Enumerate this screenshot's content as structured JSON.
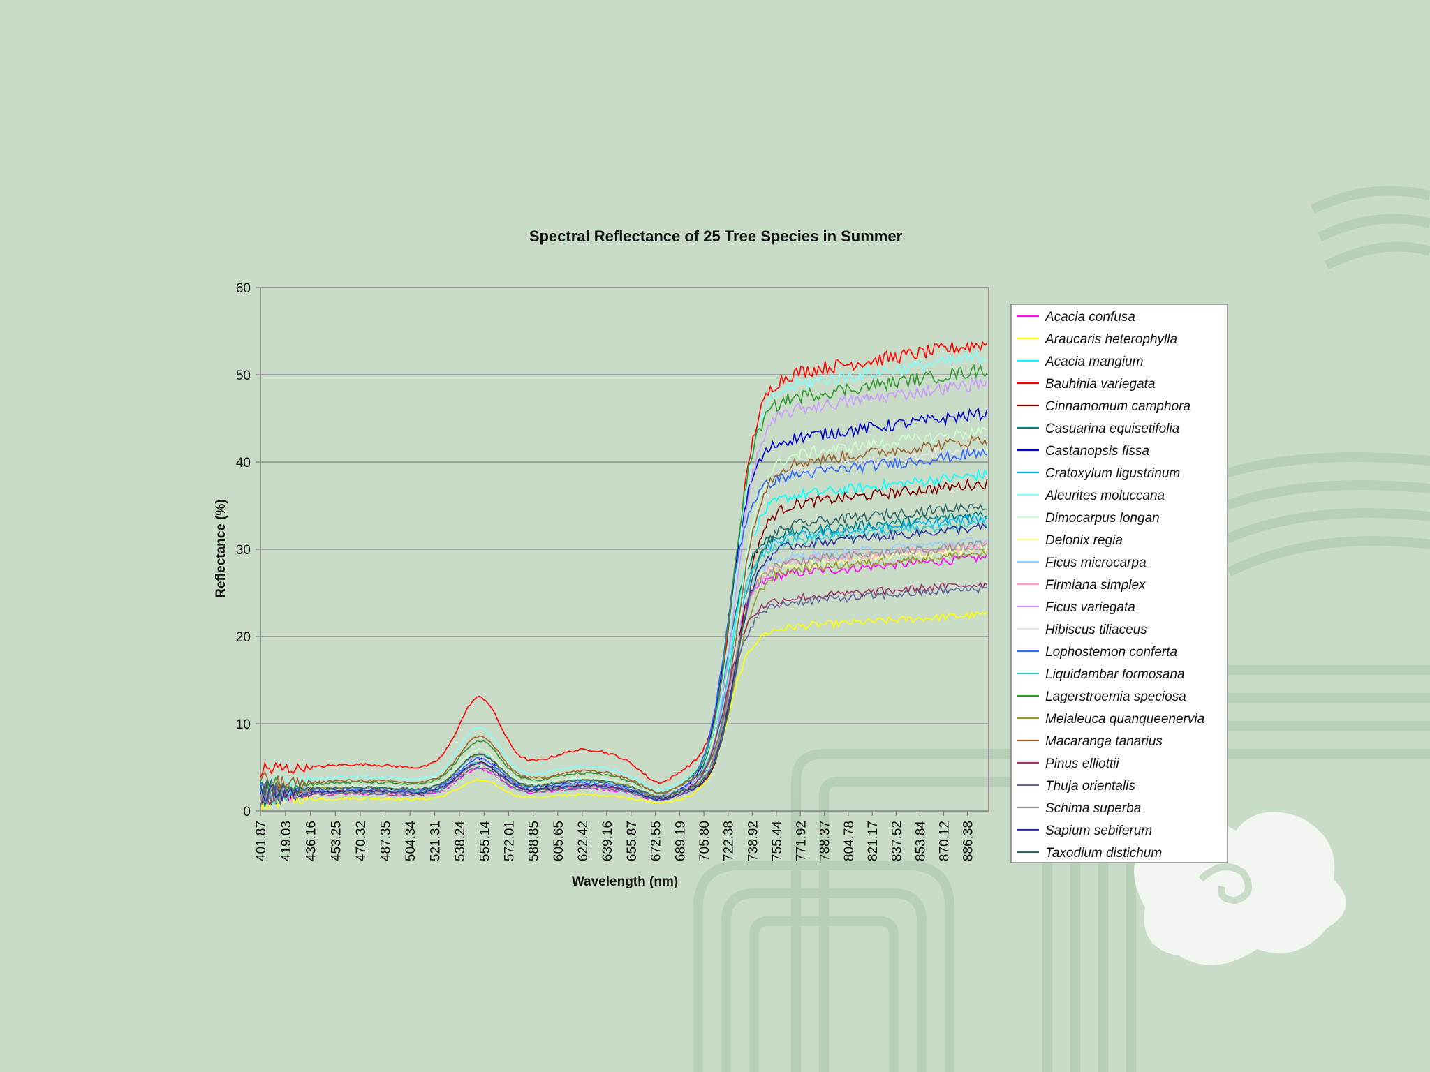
{
  "chart_data": {
    "type": "line",
    "title": "Spectral Reflectance of 25 Tree Species in Summer",
    "xlabel": "Wavelength (nm)",
    "ylabel": "Reflectance (%)",
    "ylim": [
      0,
      60
    ],
    "yticks": [
      0,
      10,
      20,
      30,
      40,
      50,
      60
    ],
    "xlim": [
      401.87,
      901.0
    ],
    "xticks": [
      "401.87",
      "419.03",
      "436.16",
      "453.25",
      "470.32",
      "487.35",
      "504.34",
      "521.31",
      "538.24",
      "555.14",
      "572.01",
      "588.85",
      "605.65",
      "622.42",
      "639.16",
      "655.87",
      "672.55",
      "689.19",
      "705.80",
      "722.38",
      "738.92",
      "755.44",
      "771.92",
      "788.37",
      "804.78",
      "821.17",
      "837.52",
      "853.84",
      "870.12",
      "886.38"
    ],
    "grid": "horizontal",
    "legend": "right",
    "series": [
      {
        "name": "Acacia confusa",
        "color": "#ff00ff",
        "visible_peak": 4.8,
        "nir": 29.0
      },
      {
        "name": "Araucaris heterophylla",
        "color": "#ffff00",
        "visible_peak": 3.5,
        "nir": 22.5
      },
      {
        "name": "Acacia mangium",
        "color": "#00ffff",
        "visible_peak": 6.5,
        "nir": 38.5
      },
      {
        "name": "Bauhinia variegata",
        "color": "#ff0000",
        "visible_peak": 13.0,
        "nir": 53.5
      },
      {
        "name": "Cinnamomum camphora",
        "color": "#800000",
        "visible_peak": 5.5,
        "nir": 37.5
      },
      {
        "name": "Casuarina equisetifolia",
        "color": "#008080",
        "visible_peak": 5.0,
        "nir": 34.0
      },
      {
        "name": "Castanopsis fissa",
        "color": "#0000cc",
        "visible_peak": 6.0,
        "nir": 45.5
      },
      {
        "name": "Cratoxylum ligustrinum",
        "color": "#00b0f0",
        "visible_peak": 5.5,
        "nir": 33.5
      },
      {
        "name": "Aleurites moluccana",
        "color": "#80ffff",
        "visible_peak": 9.5,
        "nir": 52.0
      },
      {
        "name": "Dimocarpus longan",
        "color": "#ccffcc",
        "visible_peak": 7.0,
        "nir": 43.5
      },
      {
        "name": "Delonix regia",
        "color": "#ffff99",
        "visible_peak": 5.0,
        "nir": 30.0
      },
      {
        "name": "Ficus microcarpa",
        "color": "#99ccff",
        "visible_peak": 6.0,
        "nir": 31.0
      },
      {
        "name": "Firmiana simplex",
        "color": "#ff99cc",
        "visible_peak": 5.0,
        "nir": 30.5
      },
      {
        "name": "Ficus variegata",
        "color": "#cc99ff",
        "visible_peak": 6.5,
        "nir": 49.0
      },
      {
        "name": "Hibiscus tiliaceus",
        "color": "#e6e6e6",
        "visible_peak": 6.0,
        "nir": 41.5
      },
      {
        "name": "Lophostemon conferta",
        "color": "#3366ff",
        "visible_peak": 6.0,
        "nir": 41.0
      },
      {
        "name": "Liquidambar formosana",
        "color": "#33cccc",
        "visible_peak": 5.5,
        "nir": 33.0
      },
      {
        "name": "Lagerstroemia speciosa",
        "color": "#339933",
        "visible_peak": 8.0,
        "nir": 50.5
      },
      {
        "name": "Melaleuca quanqueenervia",
        "color": "#999933",
        "visible_peak": 6.5,
        "nir": 29.5
      },
      {
        "name": "Macaranga tanarius",
        "color": "#996633",
        "visible_peak": 8.5,
        "nir": 42.5
      },
      {
        "name": "Pinus elliottii",
        "color": "#993366",
        "visible_peak": 5.5,
        "nir": 26.0
      },
      {
        "name": "Thuja orientalis",
        "color": "#666699",
        "visible_peak": 5.0,
        "nir": 25.5
      },
      {
        "name": "Schima superba",
        "color": "#969696",
        "visible_peak": 5.5,
        "nir": 30.5
      },
      {
        "name": "Sapium sebiferum",
        "color": "#333399",
        "visible_peak": 5.5,
        "nir": 32.5
      },
      {
        "name": "Taxodium distichum",
        "color": "#336666",
        "visible_peak": 6.5,
        "nir": 35.0
      }
    ]
  }
}
